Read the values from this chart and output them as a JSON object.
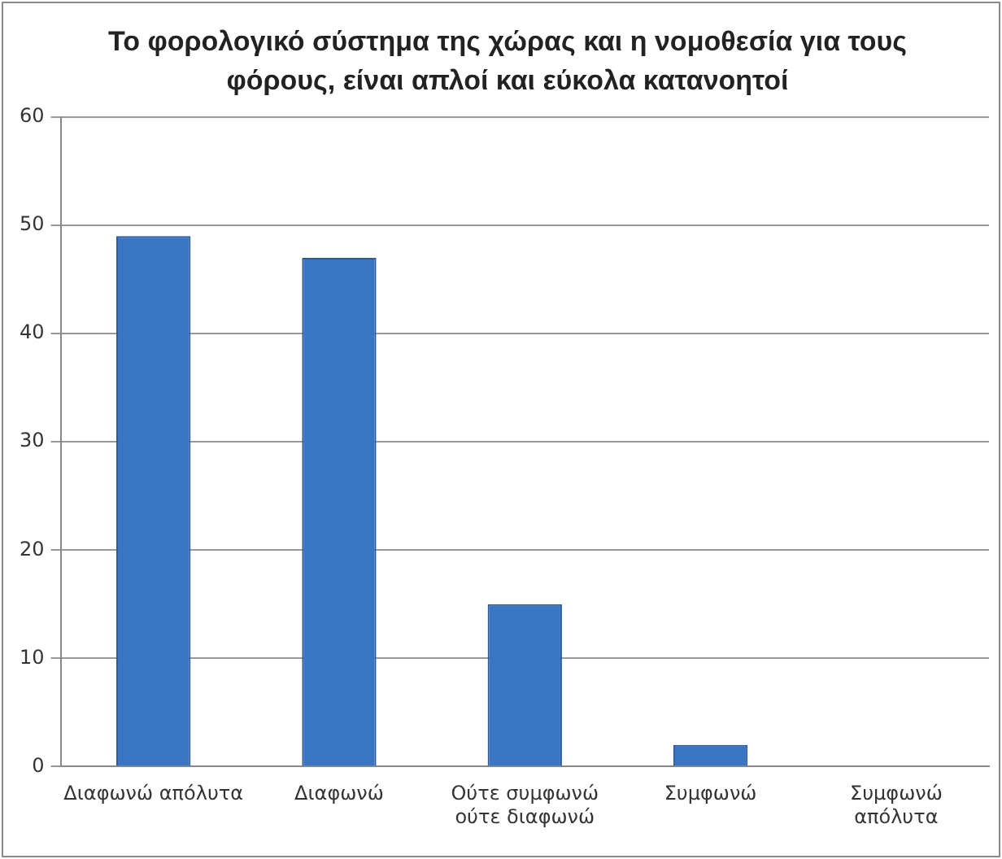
{
  "chart_data": {
    "type": "bar",
    "title": "Το φορολογικό σύστημα της χώρας και η νομοθεσία για τους φόρους, είναι απλοί και εύκολα κατανοητοί",
    "categories": [
      "Διαφωνώ απόλυτα",
      "Διαφωνώ",
      "Ούτε συμφωνώ\nούτε διαφωνώ",
      "Συμφωνώ",
      "Συμφωνώ\nαπόλυτα"
    ],
    "values": [
      49,
      47,
      15,
      2,
      0
    ],
    "color": "#3a75c4",
    "ylim": [
      0,
      60
    ],
    "yticks": [
      0,
      10,
      20,
      30,
      40,
      50,
      60
    ],
    "grid": "y",
    "legend": false
  }
}
